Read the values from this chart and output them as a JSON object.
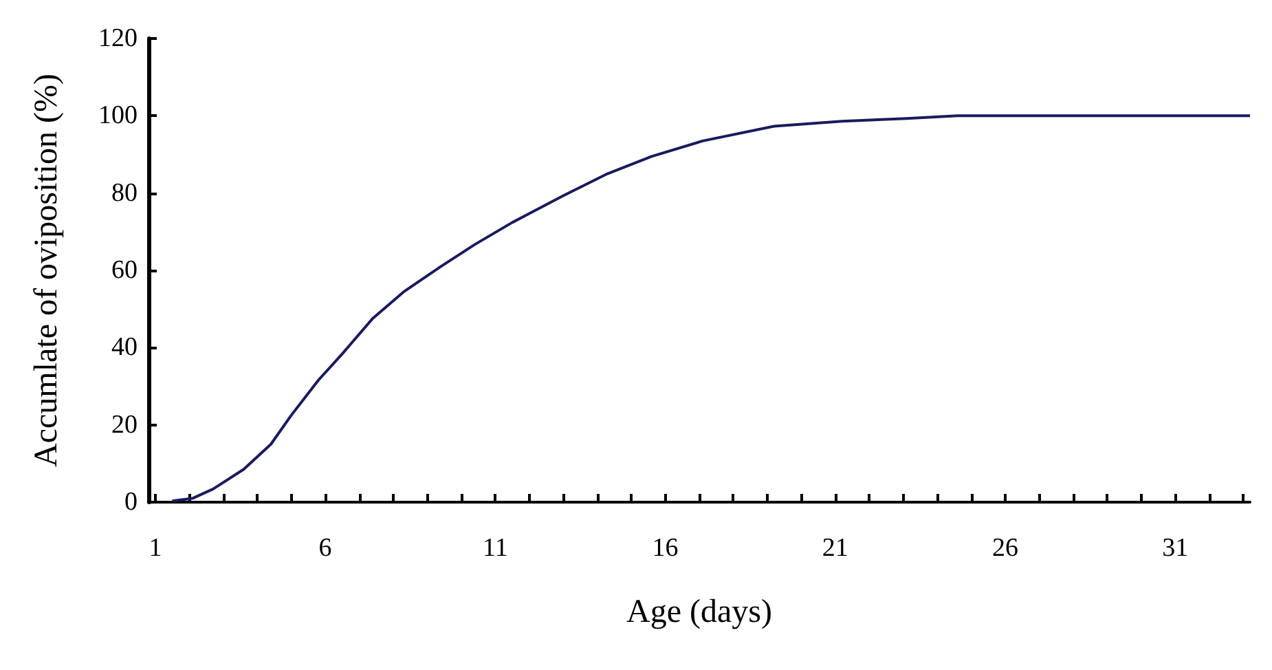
{
  "chart_data": {
    "type": "line",
    "xlabel": "Age (days)",
    "ylabel": "Accumlate of oviposition (%)",
    "xlim": [
      0.8,
      33.2
    ],
    "xticks": [
      1,
      6,
      11,
      16,
      21,
      26,
      31
    ],
    "ylim": [
      0,
      120
    ],
    "yticks": [
      0,
      20,
      40,
      60,
      80,
      100,
      120
    ],
    "marker": "none",
    "line_style": "solid",
    "series": [
      {
        "color": "#1a1a5e",
        "x": [
          1.5,
          2.1,
          2.7,
          3.6,
          4.4,
          5.0,
          5.8,
          6.5,
          7.4,
          8.3,
          9.4,
          10.4,
          11.5,
          13.0,
          14.3,
          15.6,
          17.1,
          19.2,
          21.2,
          23.1,
          24.6,
          33.2
        ],
        "values": [
          0.3,
          1,
          3.4,
          8.5,
          15,
          22.5,
          31.6,
          38.4,
          47.6,
          54.4,
          61,
          66.7,
          72.4,
          79.3,
          85,
          89.5,
          93.5,
          97.3,
          98.6,
          99.3,
          100,
          100
        ]
      }
    ]
  }
}
